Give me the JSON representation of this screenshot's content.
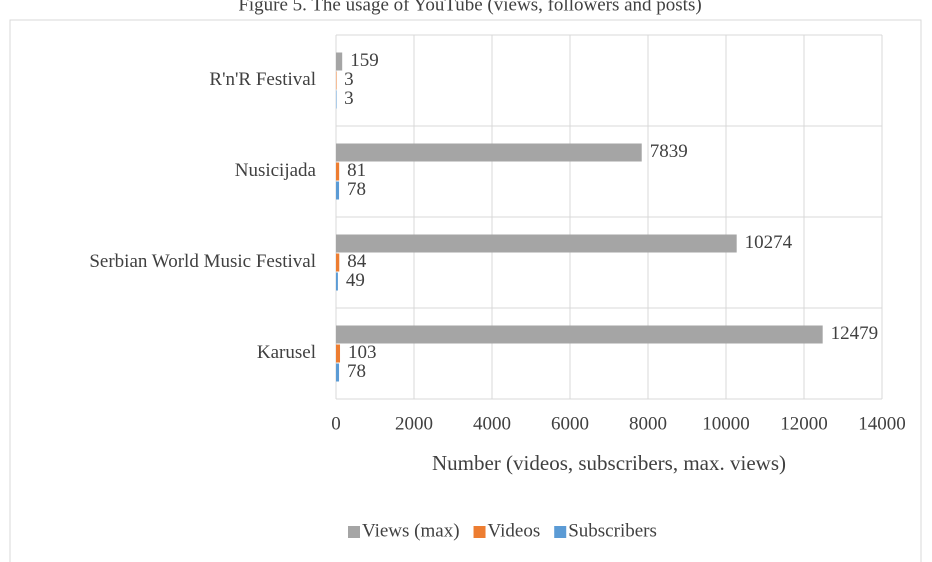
{
  "chart_data": {
    "type": "bar",
    "orientation": "horizontal",
    "title": "Figure 5. The usage of YouTube (views, followers and posts)",
    "categories": [
      "R'n'R Festival",
      "Nusicijada",
      "Serbian World Music Festival",
      "Karusel"
    ],
    "series": [
      {
        "name": "Views (max)",
        "color": "#a5a5a5",
        "values": [
          159,
          7839,
          10274,
          12479
        ]
      },
      {
        "name": "Videos",
        "color": "#ed7d31",
        "values": [
          3,
          81,
          84,
          103
        ]
      },
      {
        "name": "Subscribers",
        "color": "#5b9bd5",
        "values": [
          3,
          78,
          49,
          78
        ]
      }
    ],
    "xlabel": "Number (videos, subscribers, max. views)",
    "xlim": [
      0,
      14000
    ],
    "xticks": [
      0,
      2000,
      4000,
      6000,
      8000,
      10000,
      12000,
      14000
    ],
    "grid": true,
    "legend": "bottom"
  }
}
